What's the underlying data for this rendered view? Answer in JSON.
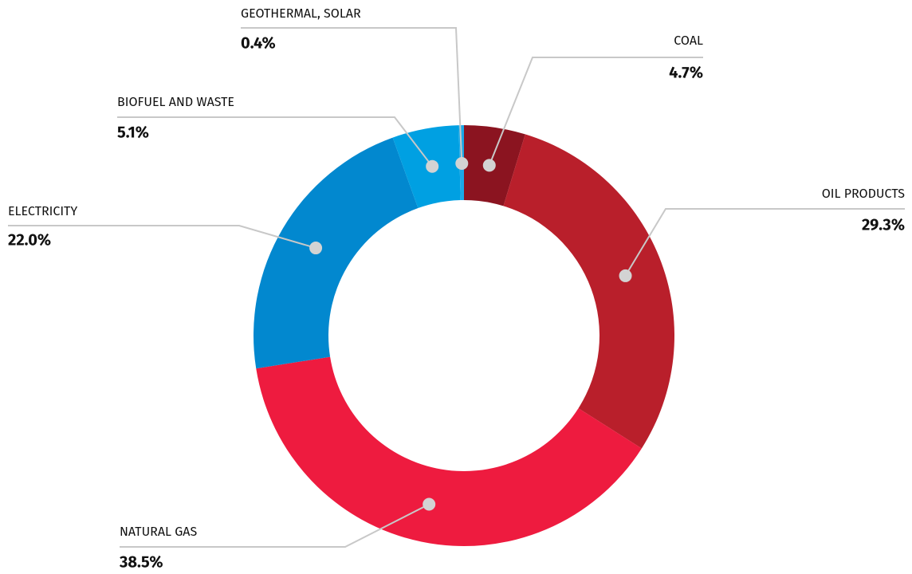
{
  "chart_data": {
    "type": "donut",
    "categories": [
      "COAL",
      "OIL PRODUCTS",
      "NATURAL GAS",
      "ELECTRICITY",
      "BIOFUEL AND WASTE",
      "GEOTHERMAL, SOLAR"
    ],
    "values": [
      4.7,
      29.3,
      38.5,
      22.0,
      5.1,
      0.4
    ],
    "value_labels": [
      "4.7%",
      "29.3%",
      "38.5%",
      "22.0%",
      "5.1%",
      "0.4%"
    ],
    "colors": [
      "#8b1420",
      "#b91f2b",
      "#ee1b3f",
      "#0288cf",
      "#00a0e2",
      "#1aa9e8"
    ]
  }
}
